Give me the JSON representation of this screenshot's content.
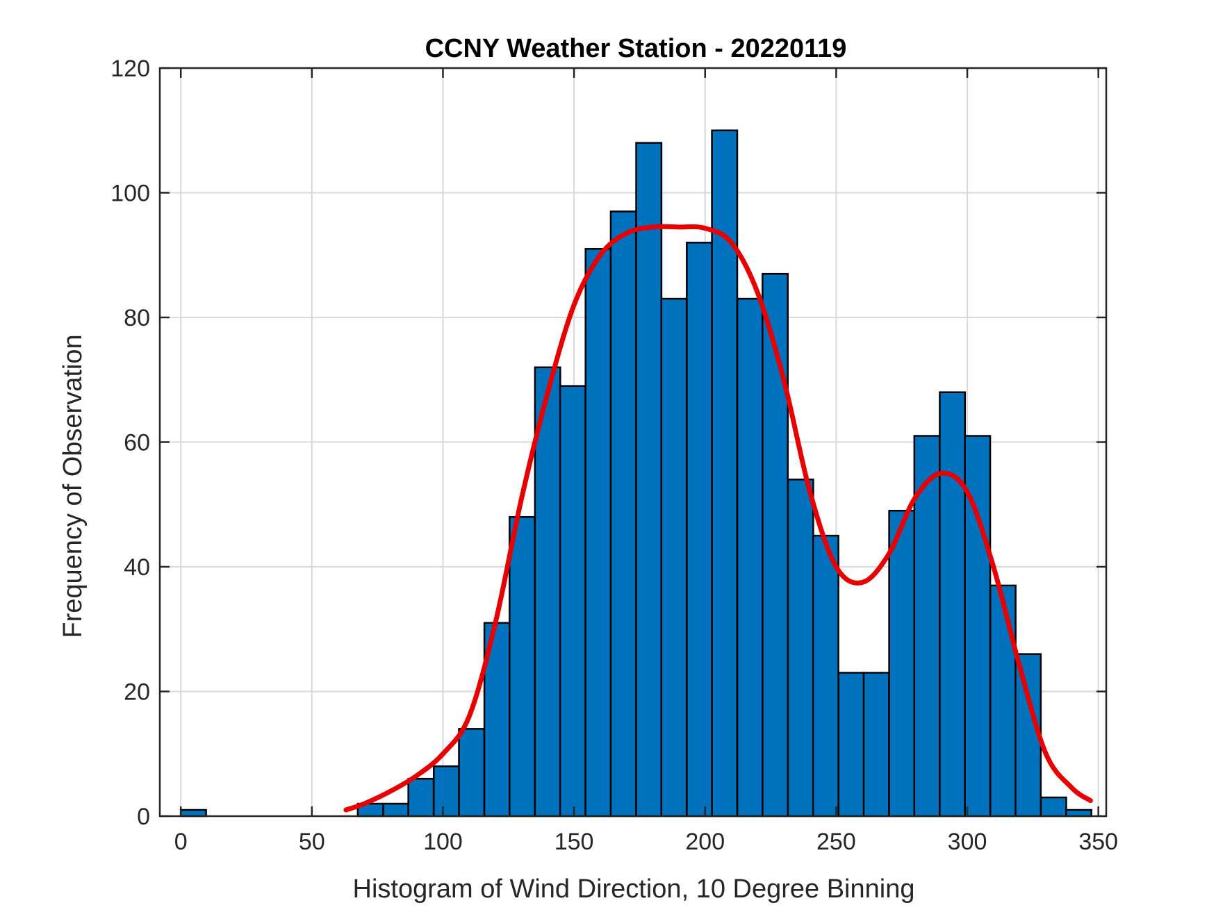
{
  "chart_data": {
    "type": "bar",
    "title": "CCNY Weather Station - 20220119",
    "xlabel": "Histogram of Wind Direction, 10 Degree Binning",
    "ylabel": "Frequency of Observation",
    "xlim": [
      -8,
      353
    ],
    "ylim": [
      0,
      120
    ],
    "xticks": [
      0,
      50,
      100,
      150,
      200,
      250,
      300,
      350
    ],
    "yticks": [
      0,
      20,
      40,
      60,
      80,
      100,
      120
    ],
    "grid": true,
    "bin_width": 9.65,
    "bins": [
      {
        "start": 0,
        "value": 1
      },
      {
        "start": 67.5,
        "value": 2
      },
      {
        "start": 77.2,
        "value": 2
      },
      {
        "start": 86.8,
        "value": 6
      },
      {
        "start": 96.5,
        "value": 8
      },
      {
        "start": 106.1,
        "value": 14
      },
      {
        "start": 115.8,
        "value": 31
      },
      {
        "start": 125.4,
        "value": 48
      },
      {
        "start": 135.1,
        "value": 72
      },
      {
        "start": 144.7,
        "value": 69
      },
      {
        "start": 154.4,
        "value": 91
      },
      {
        "start": 164.0,
        "value": 97
      },
      {
        "start": 173.7,
        "value": 108
      },
      {
        "start": 183.3,
        "value": 83
      },
      {
        "start": 193.0,
        "value": 92
      },
      {
        "start": 202.6,
        "value": 110
      },
      {
        "start": 212.3,
        "value": 83
      },
      {
        "start": 221.9,
        "value": 87
      },
      {
        "start": 231.6,
        "value": 54
      },
      {
        "start": 241.2,
        "value": 45
      },
      {
        "start": 250.9,
        "value": 23
      },
      {
        "start": 260.5,
        "value": 23
      },
      {
        "start": 270.2,
        "value": 49
      },
      {
        "start": 279.8,
        "value": 61
      },
      {
        "start": 289.5,
        "value": 68
      },
      {
        "start": 299.1,
        "value": 61
      },
      {
        "start": 308.8,
        "value": 37
      },
      {
        "start": 318.4,
        "value": 26
      },
      {
        "start": 328.1,
        "value": 3
      },
      {
        "start": 337.7,
        "value": 1
      }
    ],
    "fit_curve": {
      "x": [
        63,
        70,
        80,
        90,
        100,
        110,
        120,
        130,
        140,
        150,
        160,
        170,
        180,
        190,
        200,
        210,
        220,
        230,
        240,
        250,
        260,
        270,
        280,
        290,
        300,
        310,
        320,
        330,
        340,
        347
      ],
      "y": [
        1,
        2,
        4,
        6.5,
        10,
        16,
        31,
        51,
        68,
        82,
        90,
        93.5,
        94.5,
        94.5,
        94.3,
        92,
        84,
        70,
        52,
        40,
        37.5,
        42,
        51,
        55,
        52,
        40,
        24,
        10,
        4.5,
        2.5
      ]
    },
    "colors": {
      "bar_fill": "#0072BD",
      "bar_edge": "#000000",
      "fit_line": "#E60000"
    }
  }
}
